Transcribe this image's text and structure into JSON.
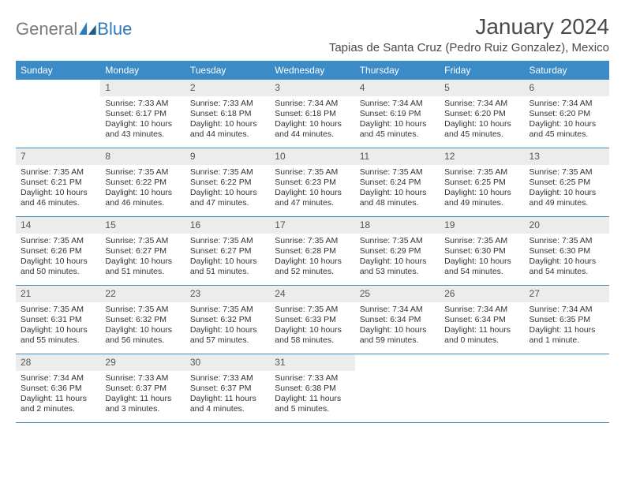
{
  "logo": {
    "text_gray": "General",
    "text_blue": "Blue"
  },
  "title": "January 2024",
  "location": "Tapias de Santa Cruz (Pedro Ruiz Gonzalez), Mexico",
  "colors": {
    "header_bar": "#3b8bc9",
    "daynum_bg": "#ececec",
    "logo_gray": "#7a7a7a",
    "logo_blue": "#2e7cc0",
    "text": "#333333",
    "title_text": "#4a4a4a"
  },
  "typography": {
    "title_fontsize": 28,
    "location_fontsize": 15,
    "dayhead_fontsize": 12,
    "daynum_fontsize": 12,
    "body_fontsize": 10.5,
    "logo_fontsize": 22
  },
  "day_headers": [
    "Sunday",
    "Monday",
    "Tuesday",
    "Wednesday",
    "Thursday",
    "Friday",
    "Saturday"
  ],
  "weeks": [
    [
      null,
      {
        "n": "1",
        "sr": "Sunrise: 7:33 AM",
        "ss": "Sunset: 6:17 PM",
        "dl": "Daylight: 10 hours and 43 minutes."
      },
      {
        "n": "2",
        "sr": "Sunrise: 7:33 AM",
        "ss": "Sunset: 6:18 PM",
        "dl": "Daylight: 10 hours and 44 minutes."
      },
      {
        "n": "3",
        "sr": "Sunrise: 7:34 AM",
        "ss": "Sunset: 6:18 PM",
        "dl": "Daylight: 10 hours and 44 minutes."
      },
      {
        "n": "4",
        "sr": "Sunrise: 7:34 AM",
        "ss": "Sunset: 6:19 PM",
        "dl": "Daylight: 10 hours and 45 minutes."
      },
      {
        "n": "5",
        "sr": "Sunrise: 7:34 AM",
        "ss": "Sunset: 6:20 PM",
        "dl": "Daylight: 10 hours and 45 minutes."
      },
      {
        "n": "6",
        "sr": "Sunrise: 7:34 AM",
        "ss": "Sunset: 6:20 PM",
        "dl": "Daylight: 10 hours and 45 minutes."
      }
    ],
    [
      {
        "n": "7",
        "sr": "Sunrise: 7:35 AM",
        "ss": "Sunset: 6:21 PM",
        "dl": "Daylight: 10 hours and 46 minutes."
      },
      {
        "n": "8",
        "sr": "Sunrise: 7:35 AM",
        "ss": "Sunset: 6:22 PM",
        "dl": "Daylight: 10 hours and 46 minutes."
      },
      {
        "n": "9",
        "sr": "Sunrise: 7:35 AM",
        "ss": "Sunset: 6:22 PM",
        "dl": "Daylight: 10 hours and 47 minutes."
      },
      {
        "n": "10",
        "sr": "Sunrise: 7:35 AM",
        "ss": "Sunset: 6:23 PM",
        "dl": "Daylight: 10 hours and 47 minutes."
      },
      {
        "n": "11",
        "sr": "Sunrise: 7:35 AM",
        "ss": "Sunset: 6:24 PM",
        "dl": "Daylight: 10 hours and 48 minutes."
      },
      {
        "n": "12",
        "sr": "Sunrise: 7:35 AM",
        "ss": "Sunset: 6:25 PM",
        "dl": "Daylight: 10 hours and 49 minutes."
      },
      {
        "n": "13",
        "sr": "Sunrise: 7:35 AM",
        "ss": "Sunset: 6:25 PM",
        "dl": "Daylight: 10 hours and 49 minutes."
      }
    ],
    [
      {
        "n": "14",
        "sr": "Sunrise: 7:35 AM",
        "ss": "Sunset: 6:26 PM",
        "dl": "Daylight: 10 hours and 50 minutes."
      },
      {
        "n": "15",
        "sr": "Sunrise: 7:35 AM",
        "ss": "Sunset: 6:27 PM",
        "dl": "Daylight: 10 hours and 51 minutes."
      },
      {
        "n": "16",
        "sr": "Sunrise: 7:35 AM",
        "ss": "Sunset: 6:27 PM",
        "dl": "Daylight: 10 hours and 51 minutes."
      },
      {
        "n": "17",
        "sr": "Sunrise: 7:35 AM",
        "ss": "Sunset: 6:28 PM",
        "dl": "Daylight: 10 hours and 52 minutes."
      },
      {
        "n": "18",
        "sr": "Sunrise: 7:35 AM",
        "ss": "Sunset: 6:29 PM",
        "dl": "Daylight: 10 hours and 53 minutes."
      },
      {
        "n": "19",
        "sr": "Sunrise: 7:35 AM",
        "ss": "Sunset: 6:30 PM",
        "dl": "Daylight: 10 hours and 54 minutes."
      },
      {
        "n": "20",
        "sr": "Sunrise: 7:35 AM",
        "ss": "Sunset: 6:30 PM",
        "dl": "Daylight: 10 hours and 54 minutes."
      }
    ],
    [
      {
        "n": "21",
        "sr": "Sunrise: 7:35 AM",
        "ss": "Sunset: 6:31 PM",
        "dl": "Daylight: 10 hours and 55 minutes."
      },
      {
        "n": "22",
        "sr": "Sunrise: 7:35 AM",
        "ss": "Sunset: 6:32 PM",
        "dl": "Daylight: 10 hours and 56 minutes."
      },
      {
        "n": "23",
        "sr": "Sunrise: 7:35 AM",
        "ss": "Sunset: 6:32 PM",
        "dl": "Daylight: 10 hours and 57 minutes."
      },
      {
        "n": "24",
        "sr": "Sunrise: 7:35 AM",
        "ss": "Sunset: 6:33 PM",
        "dl": "Daylight: 10 hours and 58 minutes."
      },
      {
        "n": "25",
        "sr": "Sunrise: 7:34 AM",
        "ss": "Sunset: 6:34 PM",
        "dl": "Daylight: 10 hours and 59 minutes."
      },
      {
        "n": "26",
        "sr": "Sunrise: 7:34 AM",
        "ss": "Sunset: 6:34 PM",
        "dl": "Daylight: 11 hours and 0 minutes."
      },
      {
        "n": "27",
        "sr": "Sunrise: 7:34 AM",
        "ss": "Sunset: 6:35 PM",
        "dl": "Daylight: 11 hours and 1 minute."
      }
    ],
    [
      {
        "n": "28",
        "sr": "Sunrise: 7:34 AM",
        "ss": "Sunset: 6:36 PM",
        "dl": "Daylight: 11 hours and 2 minutes."
      },
      {
        "n": "29",
        "sr": "Sunrise: 7:33 AM",
        "ss": "Sunset: 6:37 PM",
        "dl": "Daylight: 11 hours and 3 minutes."
      },
      {
        "n": "30",
        "sr": "Sunrise: 7:33 AM",
        "ss": "Sunset: 6:37 PM",
        "dl": "Daylight: 11 hours and 4 minutes."
      },
      {
        "n": "31",
        "sr": "Sunrise: 7:33 AM",
        "ss": "Sunset: 6:38 PM",
        "dl": "Daylight: 11 hours and 5 minutes."
      },
      null,
      null,
      null
    ]
  ]
}
